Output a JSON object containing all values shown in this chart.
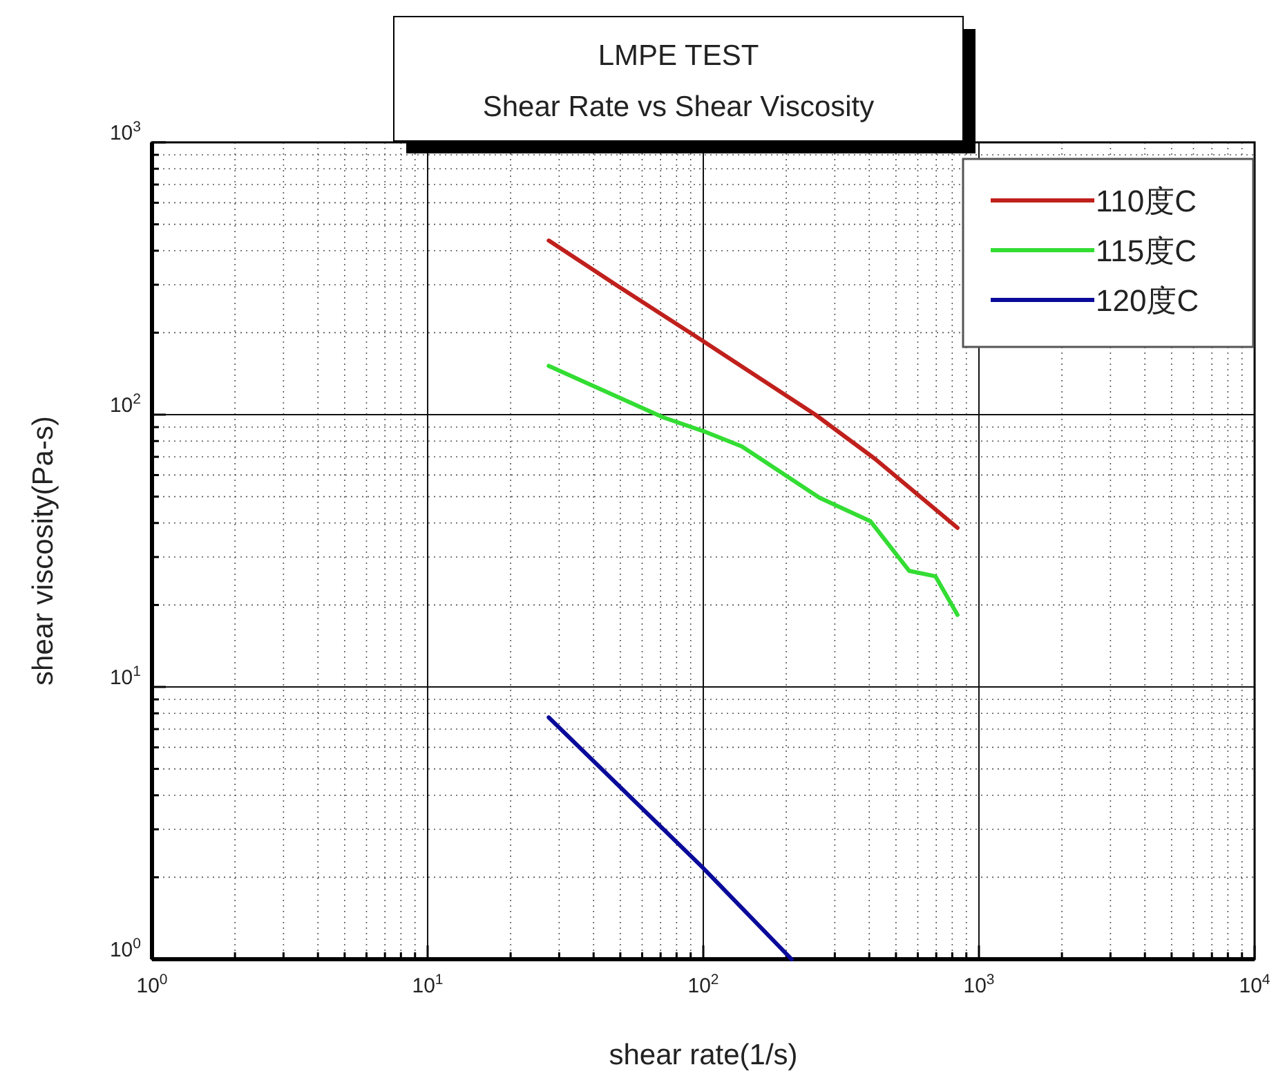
{
  "chart_data": {
    "type": "line",
    "title": "LMPE TEST",
    "subtitle": "Shear Rate vs Shear Viscosity",
    "xlabel": "shear rate(1/s)",
    "ylabel": "shear viscosity(Pa-s)",
    "log": "xy",
    "xlim": [
      1,
      10000
    ],
    "ylim": [
      1,
      1000
    ],
    "xticks": [
      {
        "value": 1,
        "label": "10$^{0}$"
      },
      {
        "value": 10,
        "label": "10$^{1}$"
      },
      {
        "value": 100,
        "label": "10$^{2}$"
      },
      {
        "value": 1000,
        "label": "10$^{3}$"
      },
      {
        "value": 10000,
        "label": "10$^{4}$"
      }
    ],
    "yticks": [
      {
        "value": 1,
        "label": "10$^{0}$"
      },
      {
        "value": 10,
        "label": "10$^{1}$"
      },
      {
        "value": 100,
        "label": "10$^{2}$"
      },
      {
        "value": 1000,
        "label": "10$^{3}$"
      }
    ],
    "grid": true,
    "legend": "top right",
    "series": [
      {
        "name": "110度C",
        "color": "#c0201c",
        "x": [
          27.5,
          48.9,
          100,
          255,
          419,
          836
        ],
        "values": [
          436,
          297,
          186,
          100,
          68.9,
          38.4
        ]
      },
      {
        "name": "115度C",
        "color": "#33dd33",
        "x": [
          27.5,
          71.6,
          100,
          138,
          264,
          404,
          558,
          695,
          836
        ],
        "values": [
          151,
          97.7,
          87,
          76.4,
          49.5,
          40.6,
          26.7,
          25.5,
          18.4
        ]
      },
      {
        "name": "120度C",
        "color": "#0a0a9a",
        "x": [
          27.5,
          100,
          209
        ],
        "values": [
          7.73,
          2.16,
          1
        ]
      }
    ]
  }
}
